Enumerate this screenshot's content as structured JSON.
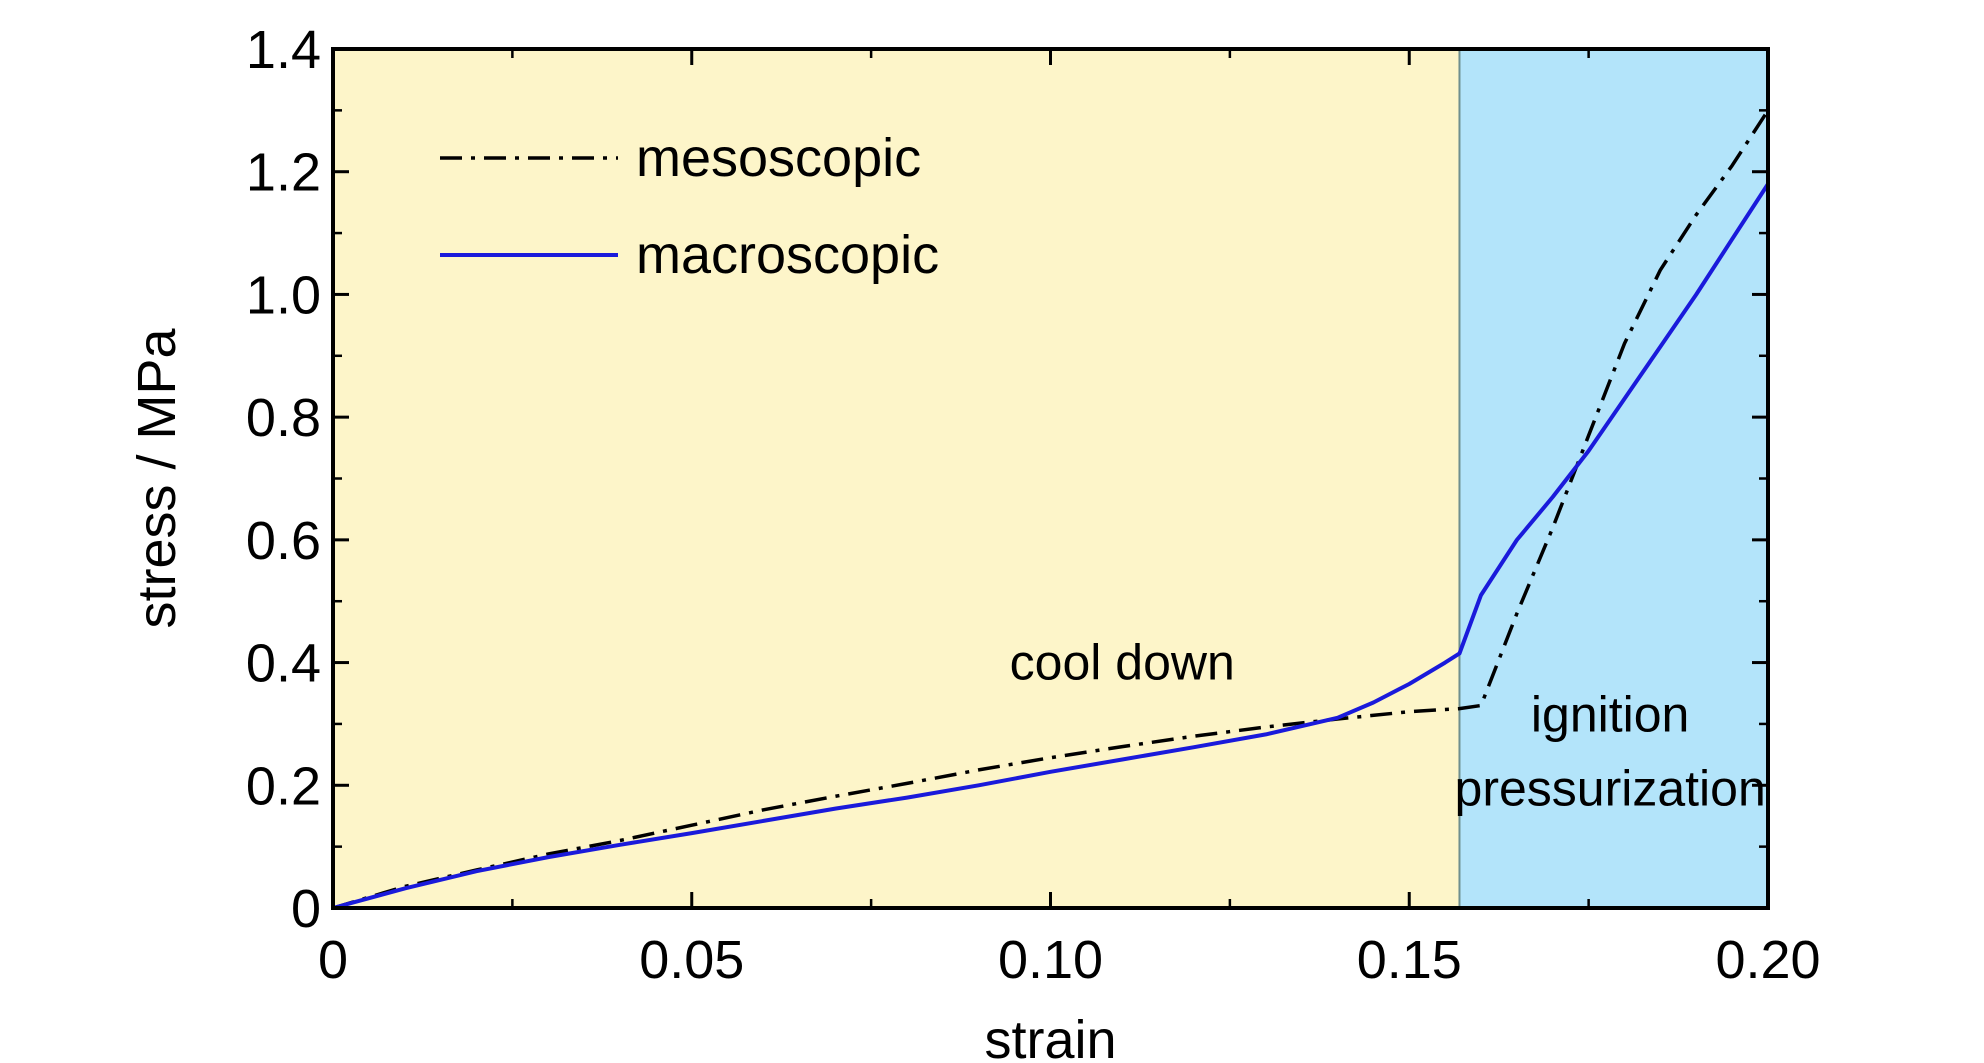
{
  "chart_data": {
    "type": "line",
    "xlabel": "strain",
    "ylabel": "stress / MPa",
    "xlim": [
      0,
      0.2
    ],
    "ylim": [
      0,
      1.4
    ],
    "xticks": [
      0,
      0.05,
      0.1,
      0.15,
      0.2
    ],
    "xtick_labels": [
      "0",
      "0.05",
      "0.10",
      "0.15",
      "0.20"
    ],
    "yticks": [
      0,
      0.2,
      0.4,
      0.6,
      0.8,
      1.0,
      1.2,
      1.4
    ],
    "ytick_labels": [
      "0",
      "0.2",
      "0.4",
      "0.6",
      "0.8",
      "1.0",
      "1.2",
      "1.4"
    ],
    "grid": false,
    "legend_position": "top-left",
    "regions": [
      {
        "x_start": 0,
        "x_end": 0.157,
        "color": "#fdf5c9",
        "label_lines": [
          "cool down"
        ],
        "label_x": 0.11,
        "label_y": 0.4
      },
      {
        "x_start": 0.157,
        "x_end": 0.2,
        "color": "#b3e4fa",
        "label_lines": [
          "ignition",
          "pressurization"
        ],
        "label_x": 0.178,
        "label_y": 0.315,
        "label_y2": 0.195
      }
    ],
    "series": [
      {
        "name": "mesoscopic",
        "color": "#000000",
        "style": "dash-dot",
        "x": [
          0,
          0.01,
          0.02,
          0.03,
          0.04,
          0.05,
          0.06,
          0.07,
          0.08,
          0.09,
          0.1,
          0.11,
          0.12,
          0.13,
          0.14,
          0.15,
          0.157,
          0.16,
          0.165,
          0.17,
          0.175,
          0.18,
          0.185,
          0.19,
          0.195,
          0.2
        ],
        "y": [
          0,
          0.035,
          0.062,
          0.088,
          0.11,
          0.135,
          0.16,
          0.182,
          0.203,
          0.225,
          0.245,
          0.263,
          0.28,
          0.295,
          0.308,
          0.32,
          0.325,
          0.33,
          0.48,
          0.62,
          0.77,
          0.92,
          1.04,
          1.13,
          1.21,
          1.3
        ]
      },
      {
        "name": "macroscopic",
        "color": "#1a1adb",
        "style": "solid",
        "x": [
          0,
          0.01,
          0.02,
          0.03,
          0.04,
          0.05,
          0.06,
          0.07,
          0.08,
          0.09,
          0.1,
          0.11,
          0.12,
          0.13,
          0.14,
          0.145,
          0.15,
          0.155,
          0.157,
          0.16,
          0.165,
          0.17,
          0.175,
          0.18,
          0.185,
          0.19,
          0.195,
          0.2
        ],
        "y": [
          0,
          0.032,
          0.06,
          0.083,
          0.103,
          0.122,
          0.142,
          0.162,
          0.18,
          0.2,
          0.222,
          0.242,
          0.262,
          0.283,
          0.31,
          0.335,
          0.365,
          0.4,
          0.415,
          0.51,
          0.6,
          0.67,
          0.745,
          0.83,
          0.915,
          1.0,
          1.09,
          1.18
        ]
      }
    ]
  }
}
